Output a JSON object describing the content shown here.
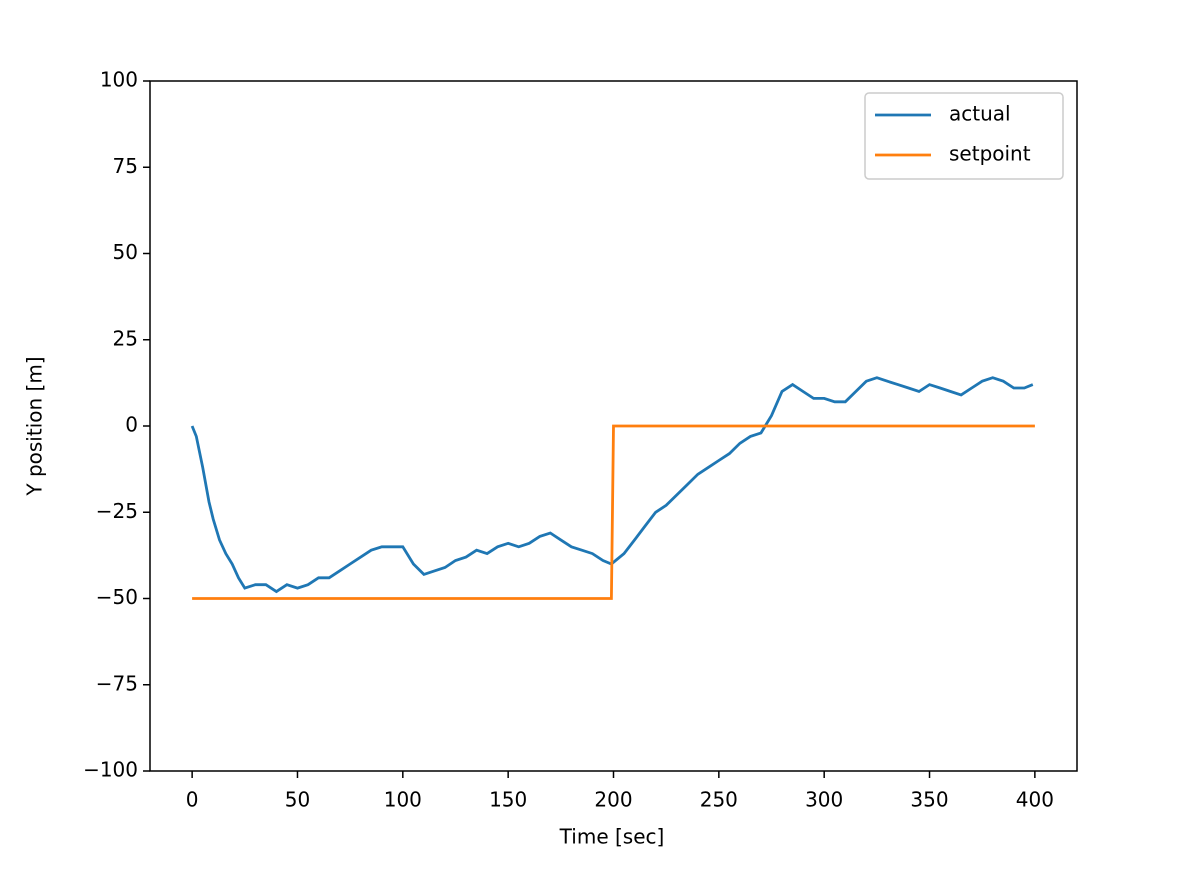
{
  "chart_data": {
    "type": "line",
    "xlabel": "Time [sec]",
    "ylabel": "Y position [m]",
    "xlim": [
      -20,
      420
    ],
    "xticks": [
      0,
      50,
      100,
      150,
      200,
      250,
      300,
      350,
      400
    ],
    "ylim": [
      -100,
      100
    ],
    "yticks": [
      {
        "value": -100,
        "label": "−100"
      },
      {
        "value": -75,
        "label": "−75"
      },
      {
        "value": -50,
        "label": "−50"
      },
      {
        "value": -25,
        "label": "−25"
      },
      0,
      25,
      50,
      75,
      100
    ],
    "legend": "upper right",
    "grid": false,
    "series": [
      {
        "name": "actual",
        "color": "#1f77b4",
        "x": [
          0,
          2,
          5,
          8,
          10,
          13,
          16,
          19,
          22,
          25,
          30,
          35,
          40,
          45,
          50,
          55,
          60,
          65,
          70,
          75,
          80,
          85,
          90,
          95,
          100,
          105,
          110,
          115,
          120,
          125,
          130,
          135,
          140,
          145,
          150,
          155,
          160,
          165,
          170,
          175,
          180,
          185,
          190,
          195,
          199,
          205,
          210,
          215,
          220,
          225,
          230,
          235,
          240,
          245,
          250,
          255,
          260,
          265,
          270,
          275,
          280,
          285,
          290,
          295,
          300,
          305,
          310,
          315,
          320,
          325,
          330,
          335,
          340,
          345,
          350,
          355,
          360,
          365,
          370,
          375,
          380,
          385,
          390,
          395,
          399
        ],
        "values": [
          0,
          -3,
          -12,
          -22,
          -27,
          -33,
          -37,
          -40,
          -44,
          -47,
          -46,
          -46,
          -48,
          -46,
          -47,
          -46,
          -44,
          -44,
          -42,
          -40,
          -38,
          -36,
          -35,
          -35,
          -35,
          -40,
          -43,
          -42,
          -41,
          -39,
          -38,
          -36,
          -37,
          -35,
          -34,
          -35,
          -34,
          -32,
          -31,
          -33,
          -35,
          -36,
          -37,
          -39,
          -40,
          -37,
          -33,
          -29,
          -25,
          -23,
          -20,
          -17,
          -14,
          -12,
          -10,
          -8,
          -5,
          -3,
          -2,
          3,
          10,
          12,
          10,
          8,
          8,
          7,
          7,
          10,
          13,
          14,
          13,
          12,
          11,
          10,
          12,
          11,
          10,
          9,
          11,
          13,
          14,
          13,
          11,
          11,
          12
        ]
      },
      {
        "name": "setpoint",
        "color": "#ff7f0e",
        "x": [
          0,
          199,
          200,
          400
        ],
        "values": [
          -50,
          -50,
          0,
          0
        ]
      }
    ]
  }
}
